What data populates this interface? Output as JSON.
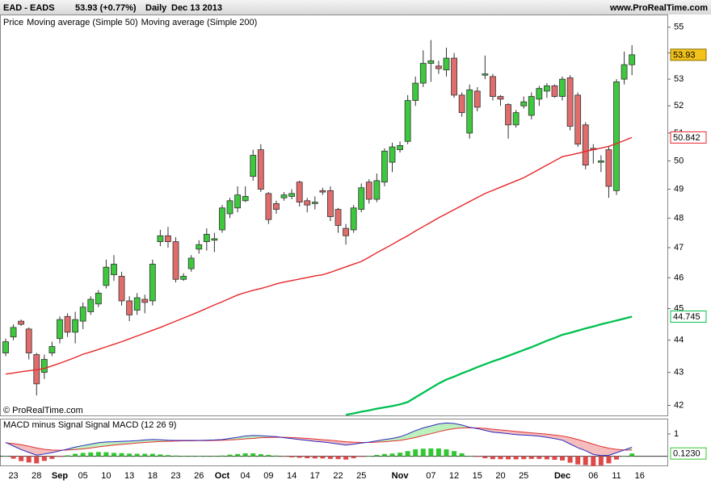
{
  "header": {
    "title": "EAD - EADS",
    "quote": "53.93 (+0.77%)",
    "period": "Daily",
    "date": "Dec 13 2013",
    "source": "www.ProRealTime.com"
  },
  "chart_data": [
    {
      "type": "candlestick",
      "legend_label": "Price",
      "watermark": "© ProRealTime.com",
      "log_scale": true,
      "up_color": "#3ec83e",
      "down_color": "#e06c6c",
      "last_color": "#f2c21b",
      "categories": [
        null,
        "23",
        null,
        null,
        "28",
        null,
        null,
        "Sep",
        null,
        null,
        "05",
        null,
        null,
        "10",
        null,
        null,
        "13",
        null,
        null,
        "18",
        null,
        null,
        "23",
        null,
        null,
        "26",
        null,
        null,
        "Oct",
        null,
        null,
        "04",
        null,
        null,
        "09",
        null,
        null,
        "14",
        null,
        null,
        "17",
        null,
        null,
        "22",
        null,
        null,
        "25",
        null,
        null,
        null,
        null,
        "Nov",
        null,
        null,
        null,
        "07",
        null,
        null,
        "12",
        null,
        null,
        "15",
        null,
        null,
        "20",
        null,
        null,
        "25",
        null,
        null,
        null,
        null,
        "Dec",
        null,
        null,
        null,
        "06",
        null,
        null,
        "11",
        null,
        null,
        "16",
        null,
        null,
        null
      ],
      "open": [
        43.6,
        44.1,
        44.6,
        44.35,
        43.55,
        43.0,
        43.6,
        44.05,
        44.75,
        44.25,
        44.6,
        44.9,
        45.15,
        45.75,
        46.1,
        46.05,
        45.25,
        44.95,
        45.3,
        45.25,
        47.2,
        47.4,
        47.2,
        45.95,
        46.3,
        46.95,
        47.2,
        47.25,
        47.6,
        48.15,
        48.35,
        48.6,
        49.45,
        50.4,
        48.85,
        48.5,
        48.7,
        48.75,
        49.25,
        48.6,
        48.5,
        48.95,
        48.95,
        48.3,
        47.65,
        47.6,
        48.3,
        49.25,
        48.65,
        49.25,
        49.95,
        50.4,
        50.7,
        52.2,
        52.85,
        53.6,
        53.5,
        53.35,
        53.8,
        52.4,
        51.0,
        52.55,
        53.15,
        53.1,
        52.35,
        52.05,
        51.3,
        52.0,
        51.65,
        52.25,
        52.55,
        52.75,
        52.35,
        53.05,
        52.4,
        51.3,
        50.45,
        49.95,
        50.4,
        48.95,
        53.0,
        53.55,
        null,
        null,
        null,
        null
      ],
      "high": [
        44.05,
        44.5,
        44.65,
        44.4,
        43.6,
        43.55,
        43.95,
        44.75,
        44.85,
        44.9,
        45.2,
        45.4,
        45.6,
        46.6,
        46.75,
        46.2,
        45.4,
        45.5,
        45.45,
        46.6,
        47.6,
        47.7,
        47.35,
        46.15,
        46.75,
        47.25,
        47.65,
        47.5,
        48.45,
        48.7,
        49.1,
        49.1,
        50.4,
        50.6,
        48.9,
        48.6,
        48.9,
        49.0,
        49.3,
        48.7,
        48.75,
        49.05,
        49.1,
        48.35,
        47.8,
        48.45,
        49.2,
        49.35,
        49.55,
        50.45,
        50.65,
        50.7,
        52.4,
        53.1,
        54.1,
        54.5,
        53.7,
        54.2,
        54.0,
        52.5,
        52.8,
        52.7,
        53.9,
        53.2,
        52.4,
        52.1,
        51.85,
        52.35,
        52.5,
        52.75,
        52.85,
        52.8,
        53.1,
        53.15,
        52.5,
        51.4,
        50.6,
        50.2,
        50.5,
        53.0,
        54.05,
        54.3,
        null,
        null,
        null,
        null
      ],
      "low": [
        43.5,
        44.0,
        44.45,
        43.4,
        42.3,
        42.8,
        43.5,
        43.9,
        44.1,
        43.9,
        44.35,
        44.8,
        45.05,
        45.65,
        45.9,
        45.1,
        44.6,
        44.8,
        44.85,
        45.1,
        47.05,
        47.0,
        45.85,
        45.9,
        46.2,
        46.8,
        46.9,
        46.85,
        47.5,
        48.0,
        48.2,
        48.55,
        49.3,
        48.9,
        47.8,
        48.15,
        48.6,
        48.65,
        48.4,
        48.2,
        48.3,
        48.8,
        47.9,
        47.5,
        47.1,
        47.5,
        48.2,
        48.5,
        48.55,
        49.1,
        49.6,
        50.3,
        50.6,
        52.0,
        52.7,
        52.9,
        53.2,
        53.1,
        52.3,
        51.6,
        50.8,
        51.8,
        53.0,
        52.2,
        52.0,
        50.8,
        51.2,
        51.9,
        51.5,
        52.0,
        52.3,
        52.3,
        52.2,
        51.1,
        50.5,
        49.7,
        49.9,
        49.6,
        48.7,
        48.8,
        52.8,
        53.15,
        null,
        null,
        null,
        null
      ],
      "close": [
        43.95,
        44.4,
        44.5,
        43.6,
        42.65,
        43.4,
        43.8,
        44.65,
        44.25,
        44.65,
        45.05,
        45.3,
        45.5,
        46.35,
        46.45,
        45.25,
        44.8,
        45.35,
        45.2,
        46.45,
        47.4,
        47.2,
        45.95,
        46.05,
        46.65,
        47.1,
        47.45,
        47.3,
        48.35,
        48.6,
        48.8,
        48.75,
        50.2,
        49.0,
        47.95,
        48.3,
        48.8,
        48.85,
        48.55,
        48.45,
        48.55,
        48.9,
        48.05,
        47.75,
        47.4,
        48.35,
        49.05,
        48.65,
        49.3,
        50.35,
        50.5,
        50.55,
        52.2,
        52.85,
        53.6,
        53.7,
        53.4,
        53.8,
        52.4,
        51.75,
        52.6,
        51.95,
        53.2,
        52.35,
        52.25,
        51.3,
        51.75,
        52.15,
        52.35,
        52.65,
        52.75,
        52.35,
        53.0,
        51.25,
        50.6,
        49.85,
        50.4,
        50.0,
        49.1,
        52.9,
        53.55,
        53.93,
        null,
        null,
        null,
        null
      ],
      "series": [
        {
          "name": "Moving average (Simple 50)",
          "color": "#e8262a",
          "values": [
            42.95,
            42.98,
            43.02,
            43.05,
            43.08,
            43.12,
            43.2,
            43.28,
            43.37,
            43.46,
            43.56,
            43.63,
            43.71,
            43.79,
            43.87,
            43.95,
            44.04,
            44.13,
            44.22,
            44.31,
            44.4,
            44.5,
            44.6,
            44.7,
            44.8,
            44.9,
            45.01,
            45.12,
            45.22,
            45.33,
            45.44,
            45.52,
            45.59,
            45.65,
            45.72,
            45.8,
            45.86,
            45.91,
            45.96,
            46.01,
            46.06,
            46.1,
            46.18,
            46.27,
            46.36,
            46.45,
            46.54,
            46.68,
            46.83,
            46.97,
            47.11,
            47.26,
            47.4,
            47.56,
            47.71,
            47.86,
            48.01,
            48.15,
            48.29,
            48.43,
            48.57,
            48.71,
            48.85,
            48.96,
            49.07,
            49.18,
            49.29,
            49.4,
            49.55,
            49.7,
            49.85,
            50.0,
            50.15,
            50.21,
            50.27,
            50.34,
            50.4,
            50.46,
            50.52,
            50.62,
            50.73,
            50.842,
            null,
            null,
            null,
            null
          ]
        },
        {
          "name": "Moving average (Simple 200)",
          "color": "#00c050",
          "values": [
            null,
            null,
            null,
            null,
            null,
            null,
            null,
            null,
            null,
            null,
            null,
            null,
            null,
            null,
            null,
            null,
            null,
            null,
            null,
            null,
            null,
            null,
            null,
            null,
            null,
            null,
            null,
            null,
            null,
            null,
            null,
            null,
            null,
            null,
            null,
            null,
            null,
            null,
            null,
            null,
            null,
            null,
            null,
            null,
            41.72,
            41.76,
            41.81,
            41.85,
            41.9,
            41.94,
            41.98,
            42.03,
            42.1,
            42.24,
            42.38,
            42.52,
            42.66,
            42.78,
            42.87,
            42.97,
            43.06,
            43.16,
            43.25,
            43.34,
            43.42,
            43.51,
            43.6,
            43.69,
            43.78,
            43.88,
            43.98,
            44.07,
            44.17,
            44.23,
            44.3,
            44.37,
            44.43,
            44.5,
            44.56,
            44.62,
            44.68,
            44.745,
            null,
            null,
            null,
            null
          ]
        }
      ],
      "ylim": [
        41.7,
        55.5
      ],
      "yticks": [
        42,
        43,
        44,
        45,
        46,
        47,
        48,
        49,
        50,
        51,
        52,
        53,
        54,
        55
      ]
    },
    {
      "type": "macd",
      "fill_up": "#bdf0bd",
      "fill_down": "#f4bcbc",
      "series": [
        {
          "name": "MACD minus Signal",
          "color": "#33c833",
          "negative_color": "#e04848",
          "values": [
            0.02,
            -0.11,
            -0.22,
            -0.28,
            -0.32,
            -0.21,
            -0.12,
            -0.03,
            0.04,
            0.11,
            0.15,
            0.17,
            0.19,
            0.18,
            0.15,
            0.14,
            0.12,
            0.11,
            0.11,
            0.11,
            0.08,
            0.05,
            0.03,
            0.02,
            0.02,
            0.01,
            0.02,
            0.02,
            0.03,
            0.07,
            0.1,
            0.13,
            0.13,
            0.09,
            0.06,
            0.03,
            -0.02,
            -0.05,
            -0.07,
            -0.09,
            -0.1,
            -0.1,
            -0.12,
            -0.13,
            -0.15,
            -0.09,
            -0.03,
            0.01,
            0.06,
            0.1,
            0.12,
            0.16,
            0.23,
            0.31,
            0.34,
            0.35,
            0.35,
            0.31,
            0.23,
            0.13,
            0.02,
            -0.03,
            -0.09,
            -0.13,
            -0.13,
            -0.14,
            -0.14,
            -0.13,
            -0.12,
            -0.12,
            -0.14,
            -0.16,
            -0.19,
            -0.29,
            -0.37,
            -0.4,
            -0.46,
            -0.41,
            -0.32,
            -0.15,
            0,
            0.123,
            null,
            null,
            null,
            null
          ],
          "value_labels": [
            null,
            null,
            null,
            null,
            null,
            null,
            null,
            null,
            null,
            null,
            null,
            null,
            null,
            null,
            null,
            null,
            null,
            null,
            null,
            null,
            null,
            null,
            null,
            null,
            null,
            null,
            null,
            null,
            null,
            null,
            null,
            null,
            null,
            null,
            null,
            null,
            null,
            null,
            null,
            null,
            null,
            null,
            null,
            null,
            null,
            null,
            null,
            null,
            null,
            null,
            null,
            null,
            null,
            null,
            null,
            null,
            null,
            null,
            null,
            null,
            null,
            null,
            null,
            null,
            null,
            null,
            null,
            null,
            null,
            null,
            null,
            null,
            null,
            null,
            null,
            null,
            null,
            null,
            null,
            null,
            null,
            "0.1230",
            null,
            null,
            null,
            null
          ]
        },
        {
          "name": "Signal",
          "color": "#e03030",
          "values": [
            0.6,
            0.57,
            0.52,
            0.45,
            0.37,
            0.31,
            0.28,
            0.27,
            0.28,
            0.3,
            0.33,
            0.37,
            0.42,
            0.46,
            0.5,
            0.53,
            0.56,
            0.59,
            0.62,
            0.64,
            0.66,
            0.67,
            0.68,
            0.69,
            0.69,
            0.7,
            0.7,
            0.71,
            0.72,
            0.73,
            0.75,
            0.78,
            0.8,
            0.83,
            0.84,
            0.85,
            0.85,
            0.84,
            0.82,
            0.8,
            0.77,
            0.74,
            0.72,
            0.68,
            0.65,
            0.63,
            0.62,
            0.62,
            0.63,
            0.65,
            0.68,
            0.71,
            0.77,
            0.84,
            0.93,
            1.01,
            1.1,
            1.18,
            1.24,
            1.27,
            1.28,
            1.27,
            1.25,
            1.21,
            1.18,
            1.15,
            1.11,
            1.08,
            1.05,
            1.02,
            0.99,
            0.95,
            0.91,
            0.84,
            0.75,
            0.65,
            0.54,
            0.44,
            0.36,
            0.31,
            0.28,
            0.277,
            null,
            null,
            null,
            null
          ]
        },
        {
          "name": "MACD (12 26 9)",
          "color": "#2a2ac0",
          "values": [
            0.62,
            0.46,
            0.3,
            0.17,
            0.05,
            0.1,
            0.16,
            0.24,
            0.32,
            0.41,
            0.48,
            0.54,
            0.61,
            0.64,
            0.65,
            0.67,
            0.68,
            0.7,
            0.73,
            0.75,
            0.74,
            0.72,
            0.71,
            0.71,
            0.71,
            0.71,
            0.72,
            0.73,
            0.75,
            0.8,
            0.85,
            0.91,
            0.93,
            0.92,
            0.9,
            0.88,
            0.83,
            0.79,
            0.75,
            0.71,
            0.67,
            0.64,
            0.6,
            0.55,
            0.5,
            0.54,
            0.59,
            0.63,
            0.69,
            0.75,
            0.8,
            0.87,
            1.0,
            1.15,
            1.27,
            1.36,
            1.45,
            1.49,
            1.47,
            1.4,
            1.3,
            1.24,
            1.16,
            1.08,
            1.05,
            1.01,
            0.97,
            0.95,
            0.93,
            0.9,
            0.85,
            0.79,
            0.72,
            0.55,
            0.38,
            0.25,
            0.08,
            0.03,
            0.04,
            0.16,
            0.28,
            0.4,
            null,
            null,
            null,
            null
          ]
        }
      ],
      "ylim": [
        -0.45,
        1.65
      ],
      "yticks": [
        1
      ]
    }
  ]
}
